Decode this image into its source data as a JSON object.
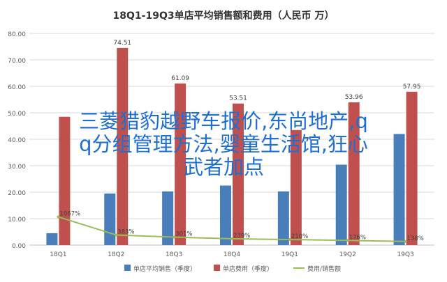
{
  "chart_data": {
    "type": "bar",
    "title": "18Q1-19Q3单店平均销售额和费用（人民币 万）",
    "categories": [
      "18Q1",
      "18Q2",
      "18Q3",
      "18Q4",
      "19Q1",
      "19Q2",
      "19Q3"
    ],
    "ylim": [
      0,
      80
    ],
    "yticks": [
      "0.00",
      "10.00",
      "20.00",
      "30.00",
      "40.00",
      "50.00",
      "60.00",
      "70.00",
      "80.00"
    ],
    "series": [
      {
        "name": "单店平均销售（季度）",
        "type": "bar",
        "color": "#4a7ebb",
        "values": [
          4.5,
          19.5,
          20.3,
          22.5,
          20.3,
          30.4,
          42.0
        ]
      },
      {
        "name": "单店费用（季度）",
        "type": "bar",
        "color": "#c0504d",
        "values": [
          48.5,
          74.51,
          61.09,
          53.51,
          43.5,
          53.96,
          57.95
        ],
        "labels": [
          "",
          "74.51",
          "61.09",
          "53.51",
          "",
          "53.96",
          "57.95"
        ]
      },
      {
        "name": "费用/销售额",
        "type": "line",
        "color": "#9bbb59",
        "values": [
          10.67,
          3.83,
          3.01,
          2.39,
          2.1,
          1.76,
          1.38
        ],
        "labels": [
          "1067%",
          "383%",
          "301%",
          "239%",
          "210%",
          "176%",
          "138%"
        ]
      }
    ],
    "legend_position": "bottom",
    "grid": true
  },
  "overlay_text": {
    "line1": "三菱猎豹越野车报价,东尚地产,q",
    "line2": "q分组管理方法,婴童生活馆,狂心",
    "line3": "武者加点"
  }
}
